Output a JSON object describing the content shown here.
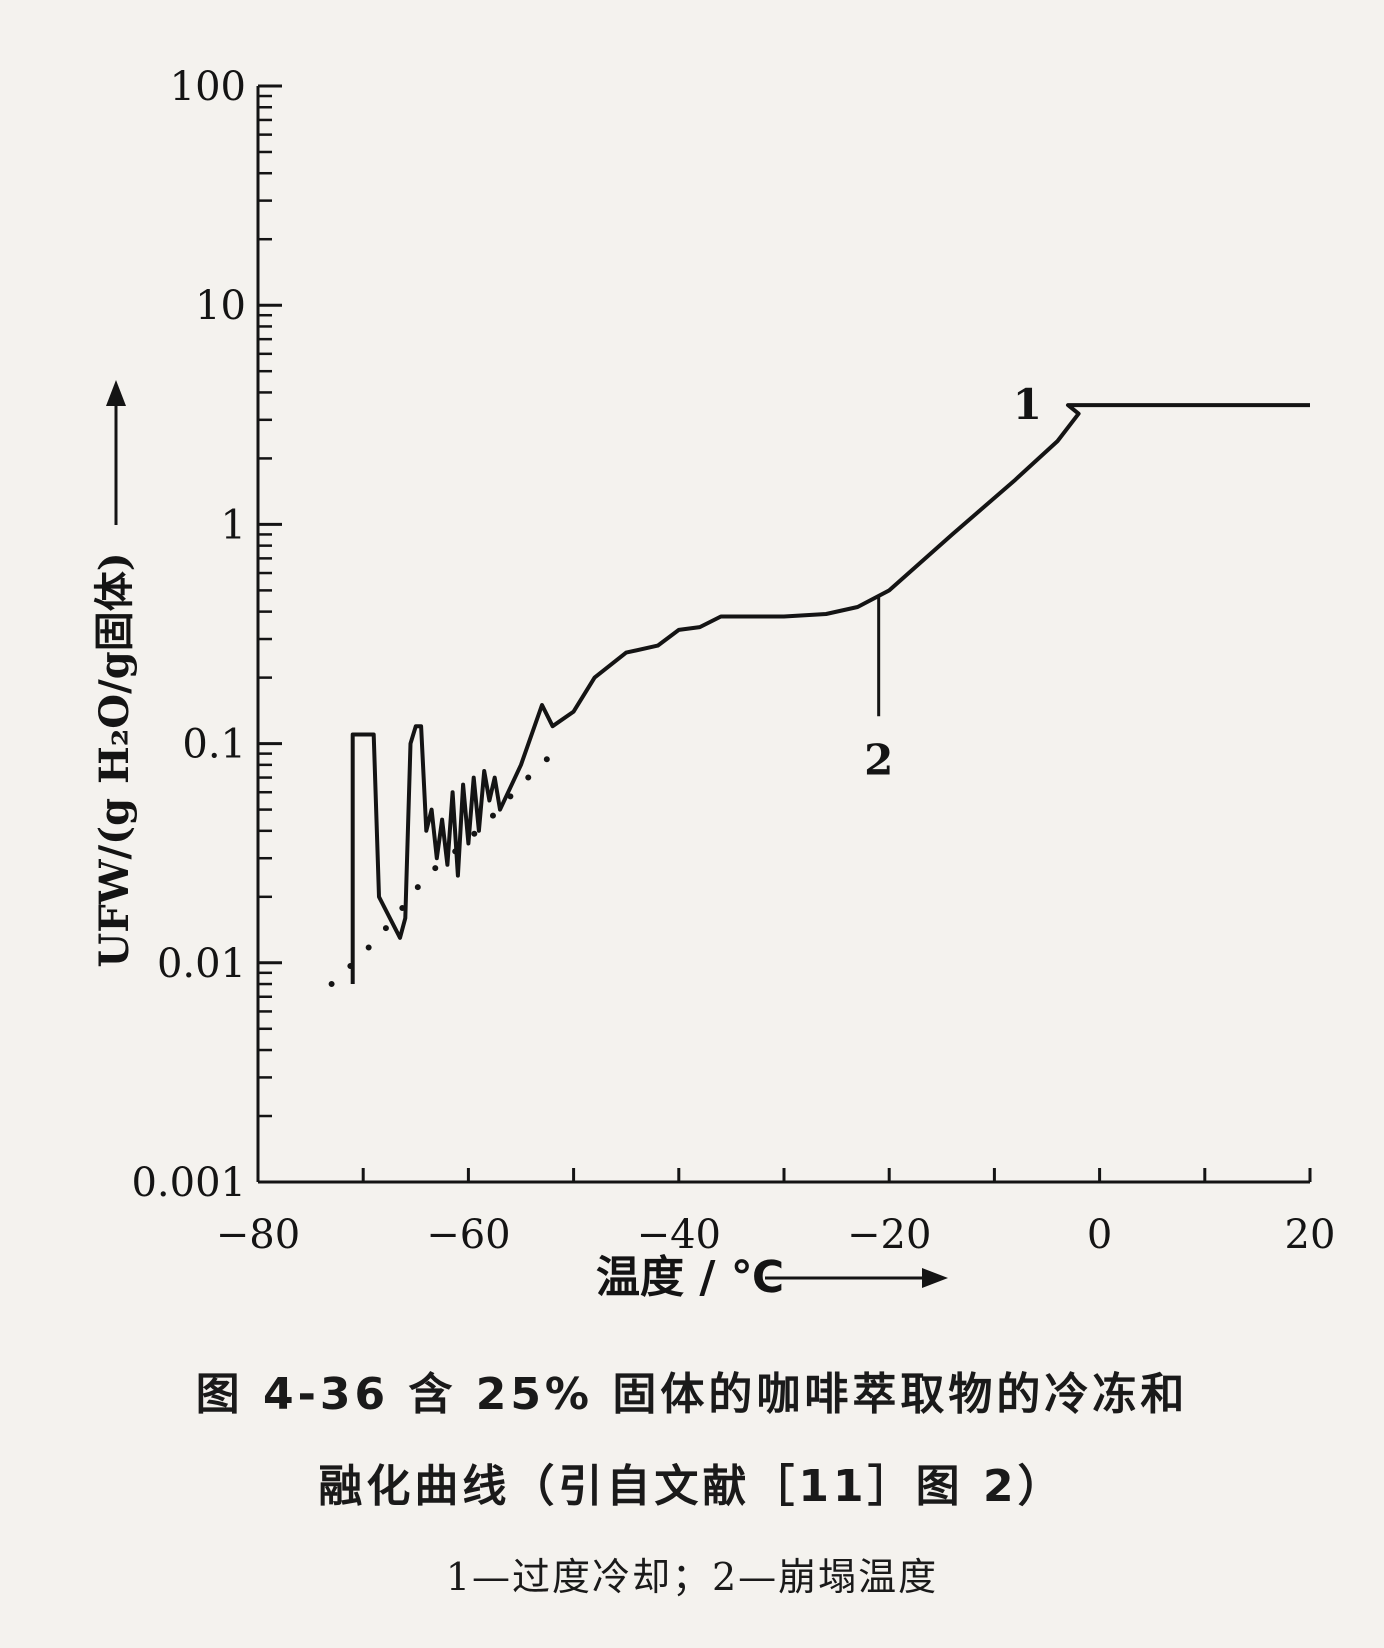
{
  "chart_data": {
    "type": "line",
    "xlabel": "温度 / ℃",
    "ylabel": "UFW/(g H₂O/g固体)",
    "xlim": [
      -80,
      20
    ],
    "ylim": [
      0.001,
      100
    ],
    "y_scale": "log",
    "x_ticks": [
      "-80",
      "-60",
      "-40",
      "-20",
      "0",
      "20"
    ],
    "y_ticks": [
      "0.001",
      "0.01",
      "0.1",
      "1",
      "10",
      "100"
    ],
    "y_tick_values": [
      0.001,
      0.01,
      0.1,
      1,
      10,
      100
    ],
    "grid": false,
    "series": [
      {
        "style": "solid",
        "points": [
          [
            -71,
            0.008
          ],
          [
            -71,
            0.11
          ],
          [
            -69,
            0.11
          ],
          [
            -68.5,
            0.02
          ],
          [
            -66.5,
            0.013
          ],
          [
            -66,
            0.016
          ],
          [
            -65.5,
            0.1
          ],
          [
            -65,
            0.12
          ],
          [
            -64.5,
            0.12
          ],
          [
            -64,
            0.04
          ],
          [
            -63.5,
            0.05
          ],
          [
            -63,
            0.03
          ],
          [
            -62.5,
            0.045
          ],
          [
            -62,
            0.028
          ],
          [
            -61.5,
            0.06
          ],
          [
            -61,
            0.025
          ],
          [
            -60.5,
            0.065
          ],
          [
            -60,
            0.035
          ],
          [
            -59.5,
            0.07
          ],
          [
            -59,
            0.04
          ],
          [
            -58.5,
            0.075
          ],
          [
            -58,
            0.055
          ],
          [
            -57.5,
            0.07
          ],
          [
            -57,
            0.05
          ],
          [
            -55,
            0.08
          ],
          [
            -53,
            0.15
          ],
          [
            -52,
            0.12
          ],
          [
            -50,
            0.14
          ],
          [
            -48,
            0.2
          ],
          [
            -45,
            0.26
          ],
          [
            -42,
            0.28
          ],
          [
            -40,
            0.33
          ],
          [
            -38,
            0.34
          ],
          [
            -36,
            0.38
          ],
          [
            -30,
            0.38
          ],
          [
            -26,
            0.39
          ],
          [
            -23,
            0.42
          ],
          [
            -20,
            0.5
          ],
          [
            -14,
            0.9
          ],
          [
            -8,
            1.6
          ],
          [
            -4,
            2.4
          ],
          [
            -2,
            3.2
          ],
          [
            -3,
            3.5
          ],
          [
            20,
            3.5
          ]
        ]
      },
      {
        "style": "dotted",
        "points": [
          [
            -73,
            0.008
          ],
          [
            -70,
            0.011
          ],
          [
            -67,
            0.016
          ],
          [
            -64,
            0.025
          ],
          [
            -61,
            0.033
          ],
          [
            -58,
            0.045
          ],
          [
            -55,
            0.065
          ],
          [
            -52,
            0.09
          ],
          [
            -51,
            0.1
          ]
        ]
      }
    ],
    "annotations": [
      {
        "label": "1",
        "x": -3,
        "y": 3.5
      },
      {
        "label": "2",
        "x": -21,
        "y": 0.47
      }
    ]
  },
  "caption": {
    "line1": "图 4-36  含 25% 固体的咖啡萃取物的冷冻和",
    "line2": "融化曲线（引自文献［11］图 2）",
    "legend": "1—过度冷却；2—崩塌温度"
  }
}
